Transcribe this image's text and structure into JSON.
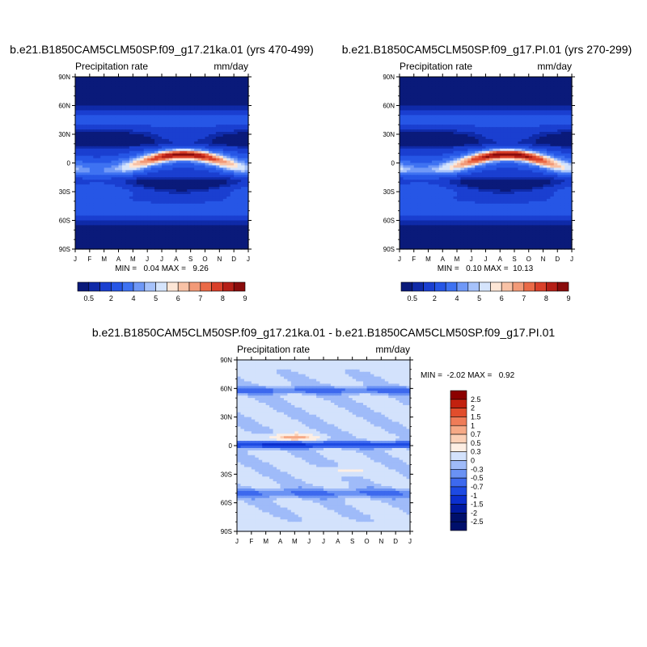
{
  "figure": {
    "panels": [
      {
        "title": "b.e21.B1850CAM5CLM50SP.f09_g17.21ka.01 (yrs 470-499)",
        "left_label": "Precipitation rate",
        "right_label": "mm/day",
        "stats": "MIN =   0.04 MAX =   9.26",
        "colorbar_labels": [
          "0.5",
          "2",
          "4",
          "5",
          "6",
          "7",
          "8",
          "9"
        ]
      },
      {
        "title": "b.e21.B1850CAM5CLM50SP.f09_g17.PI.01 (yrs 270-299)",
        "left_label": "Precipitation rate",
        "right_label": "mm/day",
        "stats": "MIN =   0.10 MAX =  10.13",
        "colorbar_labels": [
          "0.5",
          "2",
          "4",
          "5",
          "6",
          "7",
          "8",
          "9"
        ]
      },
      {
        "title": "b.e21.B1850CAM5CLM50SP.f09_g17.21ka.01 - b.e21.B1850CAM5CLM50SP.f09_g17.PI.01",
        "left_label": "Precipitation rate",
        "right_label": "mm/day",
        "stats": "MIN =  -2.02 MAX =   0.92",
        "colorbar_labels": [
          "2.5",
          "2",
          "1.5",
          "1",
          "0.7",
          "0.5",
          "0.3",
          "0",
          "-0.3",
          "-0.5",
          "-0.7",
          "-1",
          "-1.5",
          "-2",
          "-2.5"
        ]
      }
    ]
  },
  "chart_data": [
    {
      "type": "heatmap",
      "title": "b.e21.B1850CAM5CLM50SP.f09_g17.21ka.01 (yrs 470-499)",
      "subtitle_left": "Precipitation rate",
      "subtitle_right": "mm/day",
      "x_ticks": [
        "J",
        "F",
        "M",
        "A",
        "M",
        "J",
        "J",
        "A",
        "S",
        "O",
        "N",
        "D",
        "J"
      ],
      "y_ticks": [
        "90N",
        "60N",
        "30N",
        "0",
        "30S",
        "60S",
        "90S"
      ],
      "min": 0.04,
      "max": 9.26,
      "levels": [
        0.5,
        1,
        2,
        3,
        4,
        4.5,
        5,
        5.5,
        6,
        6.5,
        7,
        7.5,
        8,
        8.5,
        9
      ],
      "itcz": {
        "lat_jan": -9,
        "lat_jul": 9,
        "peak_month": 7.5,
        "peak_value": 9.26
      },
      "colorbar": "bottom"
    },
    {
      "type": "heatmap",
      "title": "b.e21.B1850CAM5CLM50SP.f09_g17.PI.01 (yrs 270-299)",
      "subtitle_left": "Precipitation rate",
      "subtitle_right": "mm/day",
      "x_ticks": [
        "J",
        "F",
        "M",
        "A",
        "M",
        "J",
        "J",
        "A",
        "S",
        "O",
        "N",
        "D",
        "J"
      ],
      "y_ticks": [
        "90N",
        "60N",
        "30N",
        "0",
        "30S",
        "60S",
        "90S"
      ],
      "min": 0.1,
      "max": 10.13,
      "levels": [
        0.5,
        1,
        2,
        3,
        4,
        4.5,
        5,
        5.5,
        6,
        6.5,
        7,
        7.5,
        8,
        8.5,
        9
      ],
      "itcz": {
        "lat_jan": -9,
        "lat_jul": 9,
        "peak_month": 7.5,
        "peak_value": 10.13
      },
      "colorbar": "bottom"
    },
    {
      "type": "heatmap",
      "title": "b.e21.B1850CAM5CLM50SP.f09_g17.21ka.01 - b.e21.B1850CAM5CLM50SP.f09_g17.PI.01",
      "subtitle_left": "Precipitation rate",
      "subtitle_right": "mm/day",
      "x_ticks": [
        "J",
        "F",
        "M",
        "A",
        "M",
        "J",
        "J",
        "A",
        "S",
        "O",
        "N",
        "D",
        "J"
      ],
      "y_ticks": [
        "90N",
        "60N",
        "30N",
        "0",
        "30S",
        "60S",
        "90S"
      ],
      "min": -2.02,
      "max": 0.92,
      "levels": [
        -2.5,
        -2,
        -1.5,
        -1,
        -0.7,
        -0.5,
        -0.3,
        0,
        0.3,
        0.5,
        0.7,
        1,
        1.5,
        2,
        2.5
      ],
      "colorbar": "right"
    }
  ],
  "colors": {
    "abs_scale": [
      "#0a1a7a",
      "#0f2aa8",
      "#1a3fd0",
      "#2656e6",
      "#3e72f2",
      "#6f98f7",
      "#a6c2fb",
      "#d5e4fc",
      "#fde6d6",
      "#f8c2a6",
      "#f29a78",
      "#ea6a47",
      "#d9402a",
      "#b51f17",
      "#8a0c0c"
    ],
    "diff_scale": [
      "#000f6b",
      "#0019a0",
      "#0b2fcf",
      "#1d4ae3",
      "#3d69ee",
      "#6a92f4",
      "#9fbbf9",
      "#d3e2fc",
      "#fdeee3",
      "#fbcfb5",
      "#f6a986",
      "#ef7c58",
      "#e14d2c",
      "#c2210f",
      "#8c0000"
    ]
  }
}
